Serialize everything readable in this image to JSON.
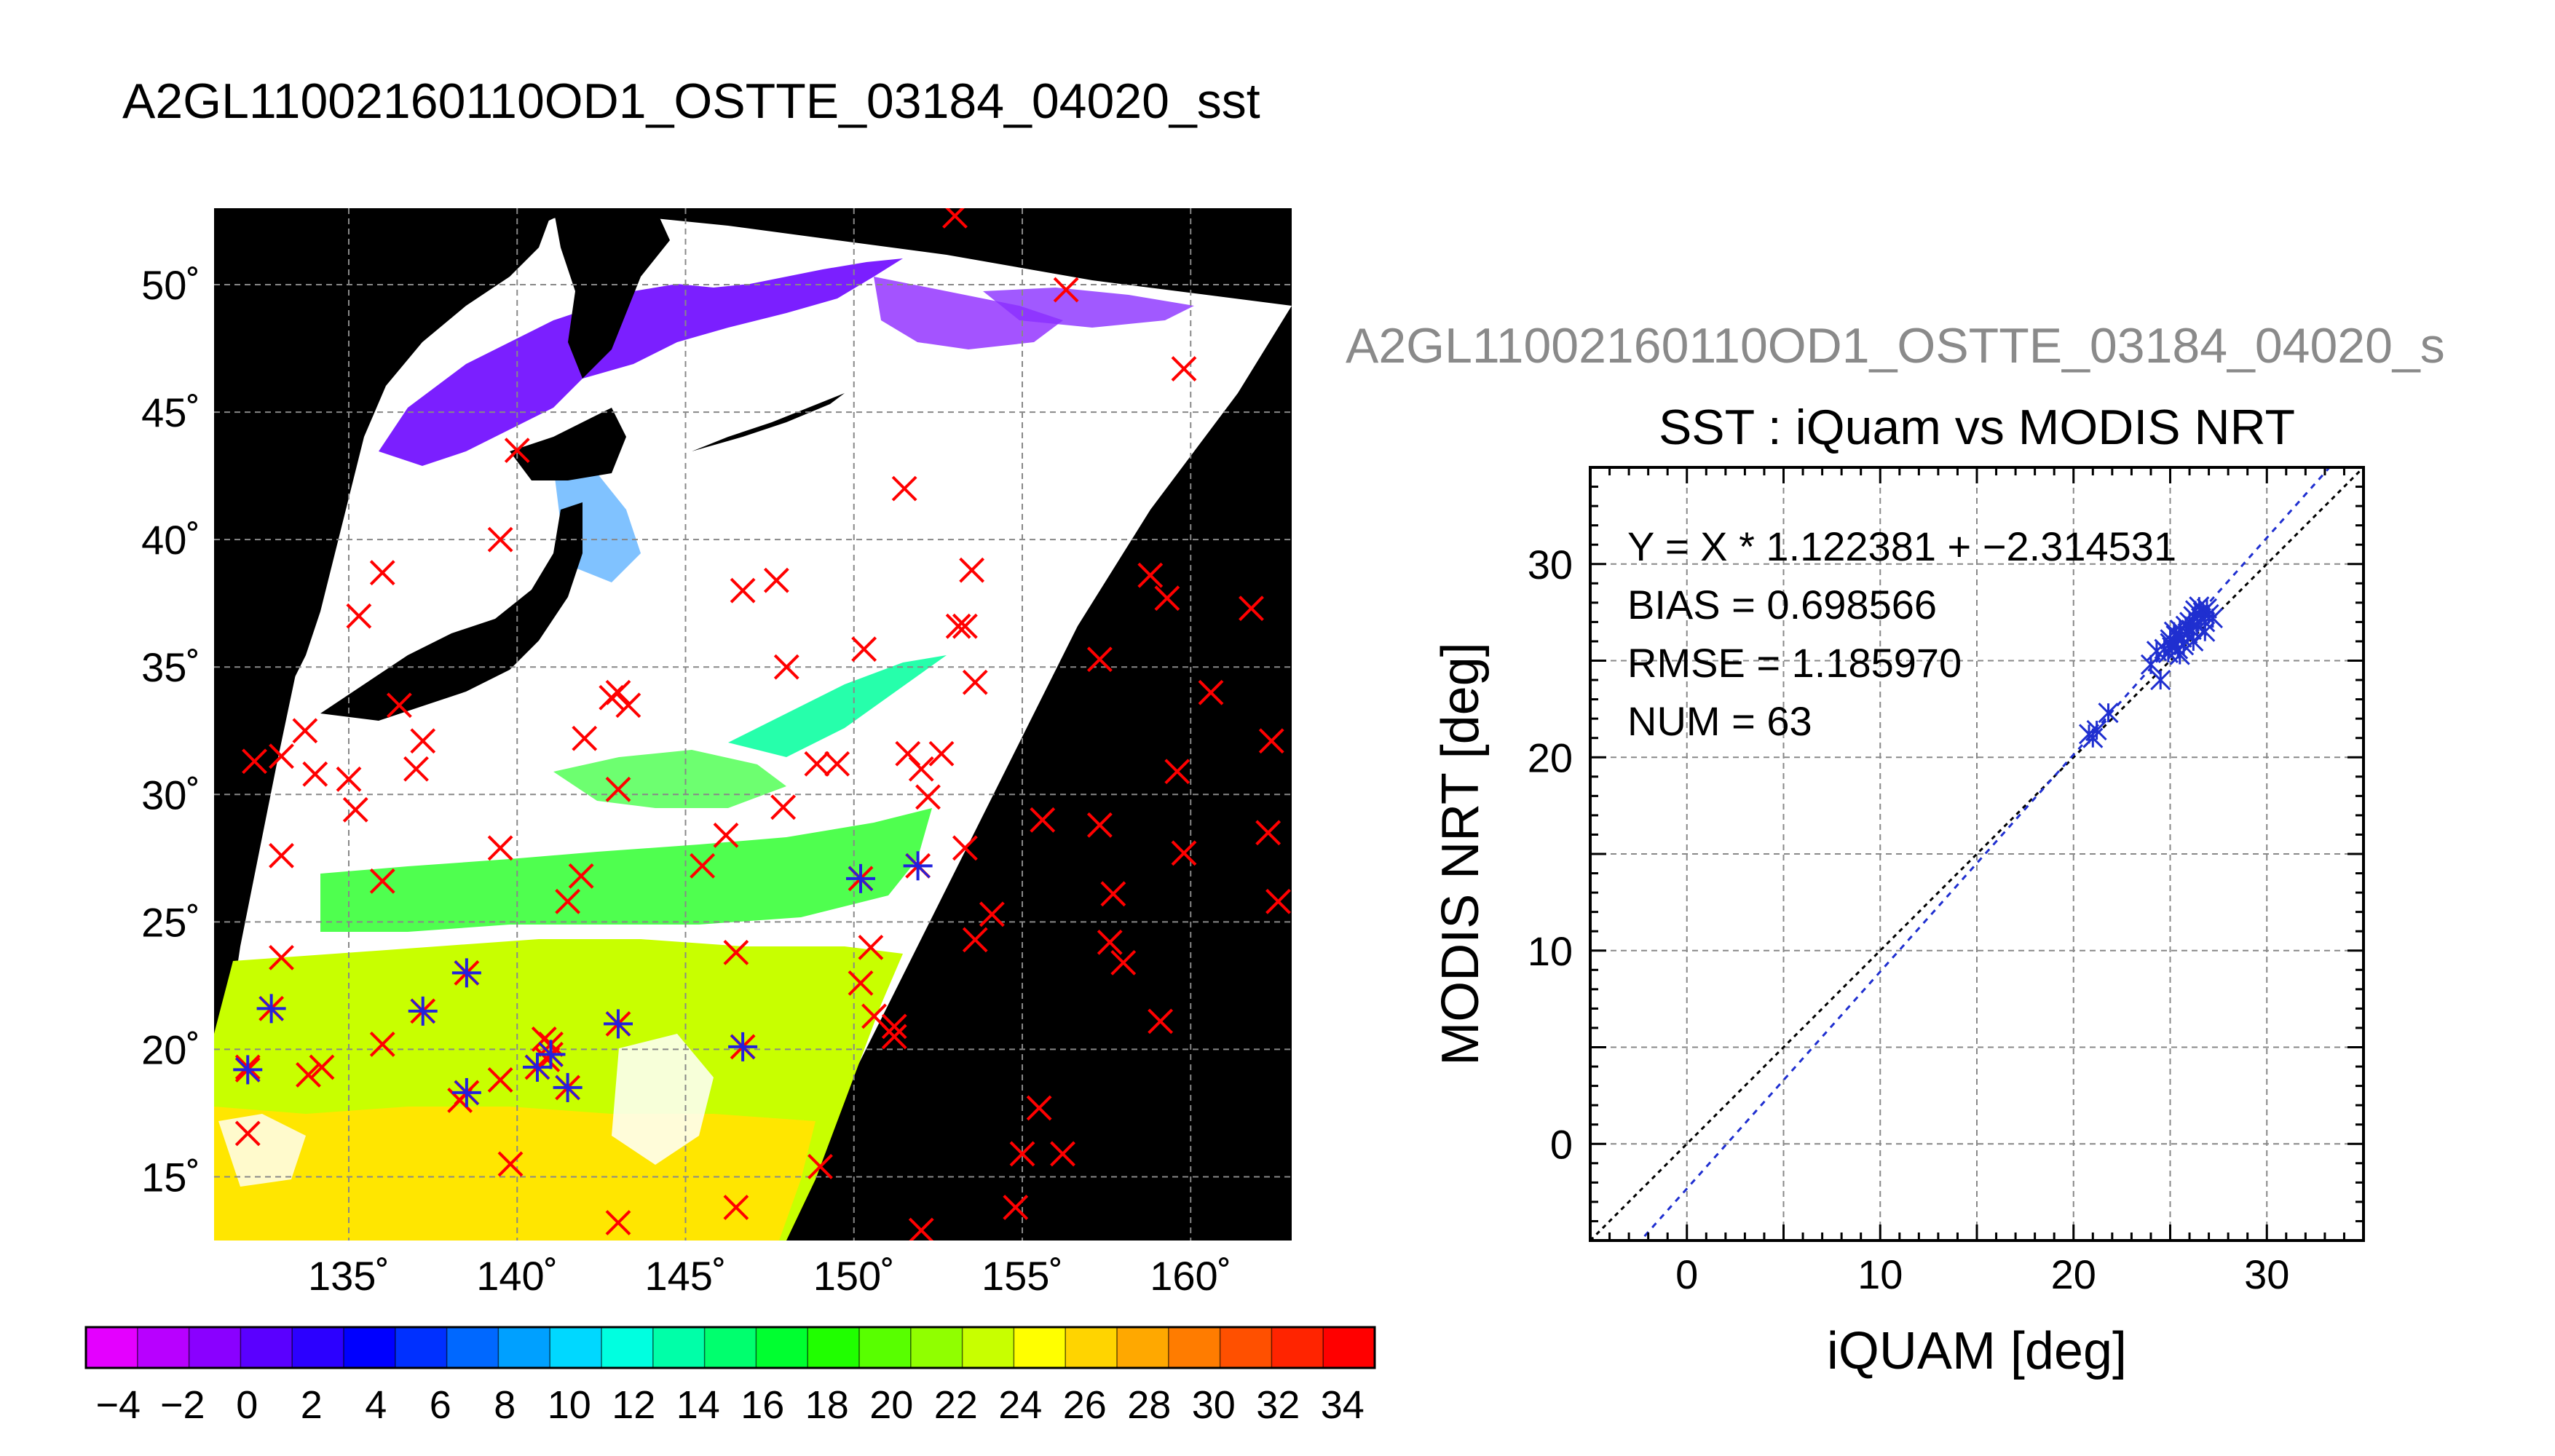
{
  "page_title": "A2GL11002160110OD1_OSTTE_03184_04020_sst",
  "colors": {
    "land": "#000000",
    "cloud": "#ffffff",
    "iquam_marker": "#ff0000",
    "match_marker": "#2222dd",
    "scatter_marker": "#1f2fd0",
    "fit_line": "#1f2fd0",
    "identity_line": "#000000",
    "grid": "#888888"
  },
  "colorbar": {
    "tick_labels": [
      "−4",
      "−2",
      "0",
      "2",
      "4",
      "6",
      "8",
      "10",
      "12",
      "14",
      "16",
      "18",
      "20",
      "22",
      "24",
      "26",
      "28",
      "30",
      "32",
      "34"
    ],
    "palette": [
      "#e400ff",
      "#b800ff",
      "#8a00ff",
      "#5a00ff",
      "#2c00ff",
      "#0000ff",
      "#0030ff",
      "#0068ff",
      "#00a0ff",
      "#00d8ff",
      "#00ffe0",
      "#00ffa8",
      "#00ff6e",
      "#00ff30",
      "#20ff00",
      "#58ff00",
      "#90ff00",
      "#c8ff00",
      "#ffff00",
      "#ffd400",
      "#ffa800",
      "#ff7c00",
      "#ff5000",
      "#ff2400",
      "#ff0000"
    ]
  },
  "chart_data": [
    {
      "type": "map",
      "title": "A2GL11002160110OD1_OSTTE_03184_04020_sst",
      "lon_ticks": [
        "135˚",
        "140˚",
        "145˚",
        "150˚",
        "155˚",
        "160˚"
      ],
      "lat_ticks": [
        "50˚",
        "45˚",
        "40˚",
        "35˚",
        "30˚",
        "25˚",
        "20˚",
        "15˚"
      ],
      "lon_range": [
        131,
        163
      ],
      "lat_range": [
        12.5,
        53
      ],
      "variable": "sst",
      "value_range": [
        -5,
        35
      ],
      "iquam_points": [
        [
          136,
          38.7
        ],
        [
          139.5,
          40
        ],
        [
          140,
          43.5
        ],
        [
          151.5,
          42
        ],
        [
          159.8,
          46.7
        ],
        [
          156.3,
          49.8
        ],
        [
          153,
          52.7
        ],
        [
          135.3,
          37
        ],
        [
          136.5,
          33.5
        ],
        [
          137.2,
          32.1
        ],
        [
          137,
          31
        ],
        [
          135,
          30.6
        ],
        [
          135.2,
          29.4
        ],
        [
          133,
          31.5
        ],
        [
          133.7,
          32.5
        ],
        [
          134,
          30.8
        ],
        [
          132.2,
          31.3
        ],
        [
          133,
          27.6
        ],
        [
          133,
          23.6
        ],
        [
          136,
          26.6
        ],
        [
          139.5,
          27.9
        ],
        [
          142,
          32.2
        ],
        [
          143,
          30.2
        ],
        [
          143,
          34
        ],
        [
          143.3,
          33.5
        ],
        [
          142.8,
          33.8
        ],
        [
          141.9,
          26.8
        ],
        [
          141.5,
          25.8
        ],
        [
          145.5,
          27.2
        ],
        [
          146.2,
          28.4
        ],
        [
          146.5,
          23.8
        ],
        [
          146.7,
          38
        ],
        [
          147.7,
          38.4
        ],
        [
          148,
          35
        ],
        [
          147.9,
          29.5
        ],
        [
          148.9,
          31.2
        ],
        [
          149.5,
          31.2
        ],
        [
          150.3,
          35.7
        ],
        [
          151.6,
          31.6
        ],
        [
          152,
          31
        ],
        [
          152.6,
          31.6
        ],
        [
          152.2,
          29.9
        ],
        [
          153.1,
          36.6
        ],
        [
          153.3,
          36.6
        ],
        [
          153.5,
          38.8
        ],
        [
          153.6,
          34.4
        ],
        [
          153.3,
          27.9
        ],
        [
          154.1,
          25.3
        ],
        [
          153.6,
          24.3
        ],
        [
          155.6,
          29
        ],
        [
          157.3,
          35.3
        ],
        [
          157.3,
          28.8
        ],
        [
          157.7,
          26.1
        ],
        [
          157.6,
          24.2
        ],
        [
          158,
          23.4
        ],
        [
          158.8,
          38.6
        ],
        [
          159.3,
          37.7
        ],
        [
          159.6,
          30.9
        ],
        [
          159.8,
          27.7
        ],
        [
          159.1,
          21.1
        ],
        [
          160.6,
          34
        ],
        [
          161.8,
          37.3
        ],
        [
          162.4,
          32.1
        ],
        [
          162.3,
          28.5
        ],
        [
          162.6,
          25.8
        ],
        [
          150.5,
          24
        ],
        [
          150.2,
          22.6
        ],
        [
          150.6,
          21.3
        ],
        [
          151.2,
          20.9
        ],
        [
          151.2,
          20.5
        ],
        [
          149,
          15.4
        ],
        [
          152,
          12.9
        ],
        [
          154.8,
          13.8
        ],
        [
          155,
          15.9
        ],
        [
          156.2,
          15.9
        ],
        [
          155.5,
          17.7
        ],
        [
          143,
          13.2
        ],
        [
          146.5,
          13.8
        ],
        [
          139.8,
          15.5
        ],
        [
          139.5,
          18.8
        ],
        [
          138.3,
          18
        ],
        [
          134.2,
          19.3
        ],
        [
          133.8,
          19
        ],
        [
          136,
          20.2
        ],
        [
          132,
          16.7
        ],
        [
          132,
          19.3
        ],
        [
          141,
          20.2
        ],
        [
          140.9,
          19.6
        ],
        [
          140.8,
          20.4
        ]
      ],
      "matched_points": [
        [
          132,
          19.2
        ],
        [
          132.7,
          21.6
        ],
        [
          137.2,
          21.5
        ],
        [
          138.5,
          23
        ],
        [
          138.5,
          18.3
        ],
        [
          140.6,
          19.3
        ],
        [
          141,
          19.8
        ],
        [
          141.5,
          18.5
        ],
        [
          143,
          21
        ],
        [
          146.7,
          20.1
        ],
        [
          150.2,
          26.7
        ],
        [
          151.9,
          27.2
        ]
      ]
    },
    {
      "type": "scatter",
      "title": "SST : iQuam vs MODIS NRT",
      "header_label": "A2GL11002160110OD1_OSTTE_03184_04020_s",
      "xlabel": "iQUAM [deg]",
      "ylabel": "MODIS NRT [deg]",
      "xlim": [
        -5,
        35
      ],
      "ylim": [
        -5,
        35
      ],
      "xticks": [
        "0",
        "10",
        "20",
        "30"
      ],
      "yticks": [
        "0",
        "10",
        "20",
        "30"
      ],
      "grid": true,
      "annotations": [
        "Y = X * 1.122381 + −2.314531",
        "BIAS = 0.698566",
        "RMSE = 1.185970",
        "NUM = 63"
      ],
      "fit": {
        "slope": 1.122381,
        "intercept": -2.314531
      },
      "identity_line": true,
      "points": [
        [
          20.8,
          21.2
        ],
        [
          21.0,
          21.0
        ],
        [
          21.2,
          21.4
        ],
        [
          21.8,
          22.3
        ],
        [
          24.0,
          24.8
        ],
        [
          24.3,
          25.5
        ],
        [
          24.5,
          24.0
        ],
        [
          24.7,
          25.6
        ],
        [
          24.9,
          25.4
        ],
        [
          25.0,
          26.1
        ],
        [
          25.1,
          25.7
        ],
        [
          25.2,
          26.5
        ],
        [
          25.3,
          26.3
        ],
        [
          25.4,
          25.6
        ],
        [
          25.5,
          26.6
        ],
        [
          25.6,
          26.2
        ],
        [
          25.7,
          25.8
        ],
        [
          25.8,
          26.8
        ],
        [
          25.9,
          26.4
        ],
        [
          26.0,
          27.0
        ],
        [
          26.1,
          26.6
        ],
        [
          26.2,
          27.3
        ],
        [
          26.3,
          27.6
        ],
        [
          26.4,
          26.8
        ],
        [
          26.5,
          27.8
        ],
        [
          26.6,
          27.2
        ],
        [
          26.7,
          27.5
        ],
        [
          26.8,
          27.0
        ],
        [
          26.9,
          27.7
        ],
        [
          27.0,
          27.4
        ],
        [
          25.5,
          25.3
        ],
        [
          26.2,
          26.0
        ],
        [
          26.8,
          26.5
        ],
        [
          27.2,
          27.2
        ],
        [
          25.0,
          25.9
        ]
      ]
    }
  ]
}
